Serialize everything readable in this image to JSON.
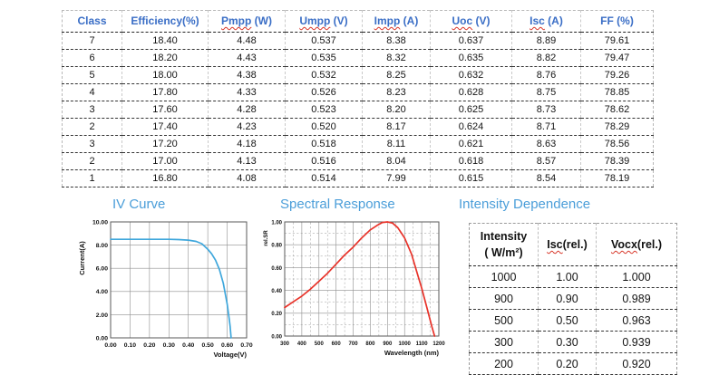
{
  "main_table": {
    "headers": [
      {
        "main": "Class",
        "unit": "",
        "wavy": false
      },
      {
        "main": "Efficiency(%)",
        "unit": "",
        "wavy": false
      },
      {
        "main": "Pmpp",
        "unit": " (W)",
        "wavy": true
      },
      {
        "main": "Umpp",
        "unit": " (V)",
        "wavy": true
      },
      {
        "main": "Impp",
        "unit": " (A)",
        "wavy": true
      },
      {
        "main": "Uoc",
        "unit": " (V)",
        "wavy": true
      },
      {
        "main": "Isc",
        "unit": " (A)",
        "wavy": true
      },
      {
        "main": "FF",
        "unit": " (%)",
        "wavy": false
      }
    ],
    "rows": [
      [
        "7",
        "18.40",
        "4.48",
        "0.537",
        "8.38",
        "0.637",
        "8.89",
        "79.61"
      ],
      [
        "6",
        "18.20",
        "4.43",
        "0.535",
        "8.32",
        "0.635",
        "8.82",
        "79.47"
      ],
      [
        "5",
        "18.00",
        "4.38",
        "0.532",
        "8.25",
        "0.632",
        "8.76",
        "79.26"
      ],
      [
        "4",
        "17.80",
        "4.33",
        "0.526",
        "8.23",
        "0.628",
        "8.75",
        "78.85"
      ],
      [
        "3",
        "17.60",
        "4.28",
        "0.523",
        "8.20",
        "0.625",
        "8.73",
        "78.62"
      ],
      [
        "2",
        "17.40",
        "4.23",
        "0.520",
        "8.17",
        "0.624",
        "8.71",
        "78.29"
      ],
      [
        "3",
        "17.20",
        "4.18",
        "0.518",
        "8.11",
        "0.621",
        "8.63",
        "78.56"
      ],
      [
        "2",
        "17.00",
        "4.13",
        "0.516",
        "8.04",
        "0.618",
        "8.57",
        "78.39"
      ],
      [
        "1",
        "16.80",
        "4.08",
        "0.514",
        "7.99",
        "0.615",
        "8.54",
        "78.19"
      ]
    ]
  },
  "sections": {
    "iv_curve_title": "IV Curve",
    "spectral_title": "Spectral Response",
    "intensity_title": "Intensity Dependence"
  },
  "chart_data": [
    {
      "id": "iv_curve",
      "type": "line",
      "title": "IV Curve",
      "xlabel": "Voltage(V)",
      "ylabel": "Current(A)",
      "xlim": [
        0.0,
        0.7
      ],
      "ylim": [
        0.0,
        10.0
      ],
      "grid": true,
      "legend": "none",
      "series_color": "#3fa7dc",
      "xticks": [
        0.0,
        0.1,
        0.2,
        0.3,
        0.4,
        0.5,
        0.6,
        0.7
      ],
      "xtick_labels": [
        "0.00",
        "0.10",
        "0.20",
        "0.30",
        "0.40",
        "0.50",
        "0.60",
        "0.70"
      ],
      "yticks": [
        0,
        2,
        4,
        6,
        8,
        10
      ],
      "ytick_labels": [
        "0.00",
        "2.00",
        "4.00",
        "6.00",
        "8.00",
        "10.00"
      ],
      "points": [
        [
          0.0,
          8.5
        ],
        [
          0.05,
          8.5
        ],
        [
          0.1,
          8.5
        ],
        [
          0.15,
          8.5
        ],
        [
          0.2,
          8.5
        ],
        [
          0.25,
          8.5
        ],
        [
          0.3,
          8.5
        ],
        [
          0.35,
          8.48
        ],
        [
          0.4,
          8.43
        ],
        [
          0.44,
          8.32
        ],
        [
          0.47,
          8.12
        ],
        [
          0.5,
          7.65
        ],
        [
          0.52,
          7.25
        ],
        [
          0.54,
          6.7
        ],
        [
          0.56,
          5.9
        ],
        [
          0.58,
          4.7
        ],
        [
          0.6,
          2.9
        ],
        [
          0.61,
          1.7
        ],
        [
          0.615,
          1.0
        ],
        [
          0.62,
          0.0
        ]
      ]
    },
    {
      "id": "spectral_response",
      "type": "line",
      "title": "Spectral Response",
      "xlabel": "Wavelength (nm)",
      "ylabel": "rel.SR",
      "xlim": [
        300,
        1200
      ],
      "ylim": [
        0.0,
        1.0
      ],
      "grid": true,
      "legend": "none",
      "series_color": "#e8332a",
      "xticks": [
        300,
        400,
        500,
        600,
        700,
        800,
        900,
        1000,
        1100,
        1200
      ],
      "xtick_labels": [
        "300",
        "400",
        "500",
        "600",
        "700",
        "800",
        "900",
        "1000",
        "1100",
        "1200"
      ],
      "yticks": [
        0.0,
        0.2,
        0.4,
        0.6,
        0.8,
        1.0
      ],
      "ytick_labels": [
        "0.00",
        "0.20",
        "0.40",
        "0.60",
        "0.80",
        "1.00"
      ],
      "x_minor": [
        350,
        450,
        550,
        650,
        750,
        850,
        950,
        1050,
        1150
      ],
      "y_minor": [
        0.1,
        0.3,
        0.5,
        0.7,
        0.9
      ],
      "points": [
        [
          300,
          0.25
        ],
        [
          350,
          0.3
        ],
        [
          400,
          0.35
        ],
        [
          450,
          0.41
        ],
        [
          500,
          0.48
        ],
        [
          550,
          0.55
        ],
        [
          600,
          0.63
        ],
        [
          650,
          0.71
        ],
        [
          700,
          0.78
        ],
        [
          750,
          0.86
        ],
        [
          800,
          0.93
        ],
        [
          840,
          0.97
        ],
        [
          870,
          0.995
        ],
        [
          900,
          1.0
        ],
        [
          930,
          0.99
        ],
        [
          960,
          0.95
        ],
        [
          1000,
          0.86
        ],
        [
          1040,
          0.72
        ],
        [
          1080,
          0.52
        ],
        [
          1100,
          0.42
        ],
        [
          1130,
          0.25
        ],
        [
          1160,
          0.08
        ],
        [
          1175,
          0.0
        ]
      ]
    }
  ],
  "intensity_table": {
    "headers": [
      {
        "word": "Intensity",
        "suffix": "( W/m²)",
        "stacked": true,
        "wavy": false
      },
      {
        "word": "Isc",
        "suffix": "(rel.)",
        "stacked": false,
        "wavy": true
      },
      {
        "word": "Vocx",
        "suffix": "(rel.)",
        "stacked": false,
        "wavy": true
      }
    ],
    "rows": [
      [
        "1000",
        "1.00",
        "1.000"
      ],
      [
        "900",
        "0.90",
        "0.989"
      ],
      [
        "500",
        "0.50",
        "0.963"
      ],
      [
        "300",
        "0.30",
        "0.939"
      ],
      [
        "200",
        "0.20",
        "0.920"
      ]
    ]
  }
}
